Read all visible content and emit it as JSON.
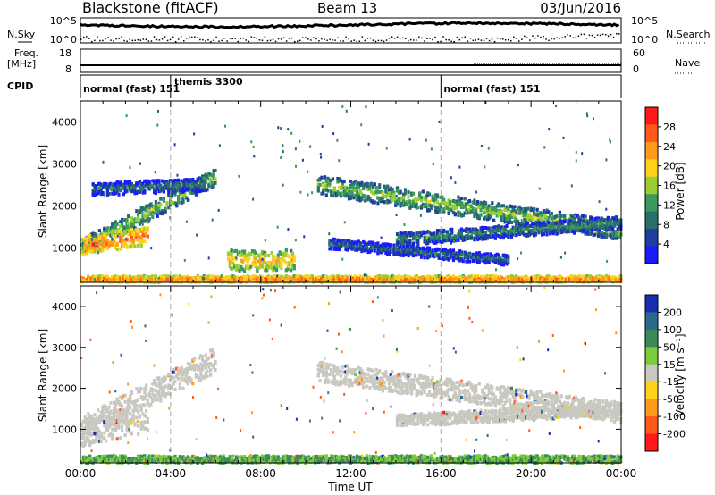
{
  "header": {
    "station": "Blackstone (fitACF)",
    "beam": "Beam 13",
    "date": "03/Jun/2016"
  },
  "summary_panels": {
    "nsky_label": "N.Sky",
    "nsearch_label": "N.Search",
    "freq_label_line1": "Freq.",
    "freq_label_line2": "[MHz]",
    "nave_label": "Nave",
    "cpid_label": "CPID",
    "left_ticks_top": [
      "10^5",
      "10^0"
    ],
    "right_ticks_top": [
      "10^5",
      "10^0"
    ],
    "left_ticks_freq": [
      "18",
      "8"
    ],
    "right_ticks_nave": [
      "60",
      "0"
    ]
  },
  "cpid_segments": [
    {
      "start_hour": 0.0,
      "end_hour": 4.0,
      "label": "normal (fast) 151"
    },
    {
      "start_hour": 4.0,
      "end_hour": 16.0,
      "label": "themis 3300"
    },
    {
      "start_hour": 16.0,
      "end_hour": 24.0,
      "label": "normal (fast) 151"
    }
  ],
  "axes": {
    "xlabel": "Time UT",
    "ylabel": "Slant Range [km]",
    "x_ticks": [
      "00:00",
      "04:00",
      "08:00",
      "12:00",
      "16:00",
      "20:00",
      "00:00"
    ],
    "y_ticks": [
      "1000",
      "2000",
      "3000",
      "4000"
    ]
  },
  "colorbars": {
    "power": {
      "label": "Power [dB]",
      "ticks": [
        "4",
        "8",
        "12",
        "16",
        "20",
        "24",
        "28"
      ],
      "colors": [
        "#1a1aff",
        "#1c3fa0",
        "#2a6e6e",
        "#3a9a5a",
        "#9acd32",
        "#ffd21a",
        "#ff9a1a",
        "#ff5a1a",
        "#ff1a1a"
      ]
    },
    "velocity": {
      "label": "Velocity [m s⁻¹]",
      "ticks": [
        "200",
        "100",
        "50",
        "15",
        "-15",
        "-50",
        "-100",
        "-200"
      ],
      "colors": [
        "#1a2fb0",
        "#2a6a8a",
        "#3a8a5a",
        "#7acc3a",
        "#c8c8c0",
        "#ffd21a",
        "#ff9a1a",
        "#ff5a1a",
        "#ff1a1a"
      ]
    }
  },
  "chart_data": [
    {
      "type": "heatmap",
      "title": "Power",
      "xlabel": "Time UT",
      "ylabel": "Slant Range [km]",
      "xlim": [
        0,
        24
      ],
      "ylim": [
        180,
        4500
      ],
      "bands": [
        {
          "t0": 0.0,
          "t1": 6.0,
          "r0": 1000,
          "r1": 2700,
          "thick": 200,
          "value": 16
        },
        {
          "t0": 0.0,
          "t1": 3.0,
          "r0": 1050,
          "r1": 1300,
          "thick": 220,
          "value": 26
        },
        {
          "t0": 0.5,
          "t1": 5.5,
          "r0": 2400,
          "r1": 2500,
          "thick": 150,
          "value": 10
        },
        {
          "t0": 10.5,
          "t1": 24.0,
          "r0": 2500,
          "r1": 1400,
          "thick": 220,
          "value": 16
        },
        {
          "t0": 14.0,
          "t1": 24.0,
          "r0": 1200,
          "r1": 1600,
          "thick": 150,
          "value": 12
        },
        {
          "t0": 11.0,
          "t1": 19.0,
          "r0": 1100,
          "r1": 700,
          "thick": 120,
          "value": 10
        },
        {
          "t0": 6.5,
          "t1": 9.5,
          "r0": 700,
          "r1": 700,
          "thick": 250,
          "value": 22
        },
        {
          "t0": 0.0,
          "t1": 24.0,
          "r0": 250,
          "r1": 250,
          "thick": 80,
          "value": 26
        }
      ]
    },
    {
      "type": "heatmap",
      "title": "Velocity",
      "xlabel": "Time UT",
      "ylabel": "Slant Range [km]",
      "xlim": [
        0,
        24
      ],
      "ylim": [
        180,
        4500
      ],
      "bands": [
        {
          "t0": 0.0,
          "t1": 6.0,
          "r0": 1000,
          "r1": 2700,
          "thick": 300,
          "value": 0
        },
        {
          "t0": 0.0,
          "t1": 3.0,
          "r0": 900,
          "r1": 1300,
          "thick": 350,
          "value": 0
        },
        {
          "t0": 10.5,
          "t1": 24.0,
          "r0": 2400,
          "r1": 1400,
          "thick": 250,
          "value": 0
        },
        {
          "t0": 14.0,
          "t1": 24.0,
          "r0": 1200,
          "r1": 1500,
          "thick": 150,
          "value": 0
        },
        {
          "t0": 0.0,
          "t1": 24.0,
          "r0": 250,
          "r1": 250,
          "thick": 100,
          "value": 30
        }
      ]
    }
  ]
}
